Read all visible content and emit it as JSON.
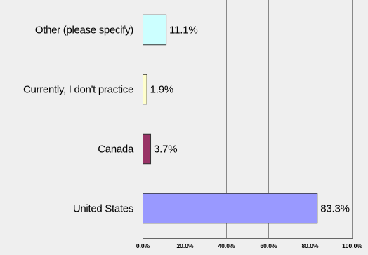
{
  "chart_data": {
    "type": "bar",
    "orientation": "horizontal",
    "categories": [
      "Other (please specify)",
      "Currently, I don't practice",
      "Canada",
      "United States"
    ],
    "values": [
      11.1,
      1.9,
      3.7,
      83.3
    ],
    "value_labels": [
      "11.1%",
      "1.9%",
      "3.7%",
      "83.3%"
    ],
    "colors": [
      "#ccffff",
      "#ffffcc",
      "#993366",
      "#9999ff"
    ],
    "x_ticks": [
      "0.0%",
      "20.0%",
      "40.0%",
      "60.0%",
      "80.0%",
      "100.0%"
    ],
    "xlim": [
      0,
      100
    ],
    "grid": true,
    "title": "",
    "xlabel": "",
    "ylabel": ""
  }
}
